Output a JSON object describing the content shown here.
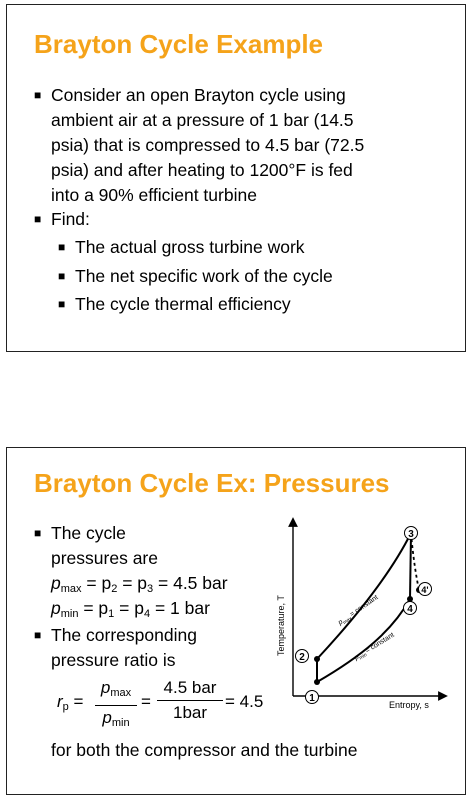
{
  "slide1": {
    "title": "Brayton Cycle Example",
    "bullet1_lines": [
      "Consider an open Brayton cycle using",
      "ambient air at a pressure of 1 bar (14.5",
      "psia) that is compressed to 4.5 bar (72.5",
      "psia) and after heating to 1200°F is fed",
      "into a 90% efficient turbine"
    ],
    "find_label": "Find:",
    "find_items": [
      "The actual gross turbine work",
      "The net specific work of the cycle",
      "The cycle thermal efficiency"
    ]
  },
  "slide2": {
    "title": "Brayton Cycle Ex: Pressures",
    "bullet1_lines": [
      "The cycle",
      "pressures are"
    ],
    "pmax_expr": {
      "var": "p",
      "sub": "max",
      "rest": " = p",
      "s2": "2",
      "eq": " = p",
      "s3": "3",
      "val": " = 4.5 bar"
    },
    "pmin_expr": {
      "var": "p",
      "sub": "min",
      "rest": " = p",
      "s1": "1",
      "eq": " = p",
      "s4": "4",
      "val": " = 1 bar"
    },
    "bullet2_lines": [
      "The corresponding",
      "pressure ratio is"
    ],
    "ratio": {
      "lhs_var": "r",
      "lhs_sub": "p",
      "f1_num_var": "p",
      "f1_num_sub": "max",
      "f1_den_var": "p",
      "f1_den_sub": "min",
      "f2_num": "4.5 bar",
      "f2_den": "1bar",
      "result": "= 4.5"
    },
    "footer": "for both the compressor and the turbine",
    "diagram": {
      "y_axis_label": "Temperature, T",
      "x_axis_label": "Entropy, s",
      "upper_curve_label": "p",
      "upper_curve_sub": "max",
      "upper_curve_rest": "= constant",
      "lower_curve_label": "p",
      "lower_curve_sub": "min",
      "lower_curve_rest": "= constant",
      "points": [
        "1",
        "2",
        "3",
        "4",
        "4'"
      ]
    }
  }
}
